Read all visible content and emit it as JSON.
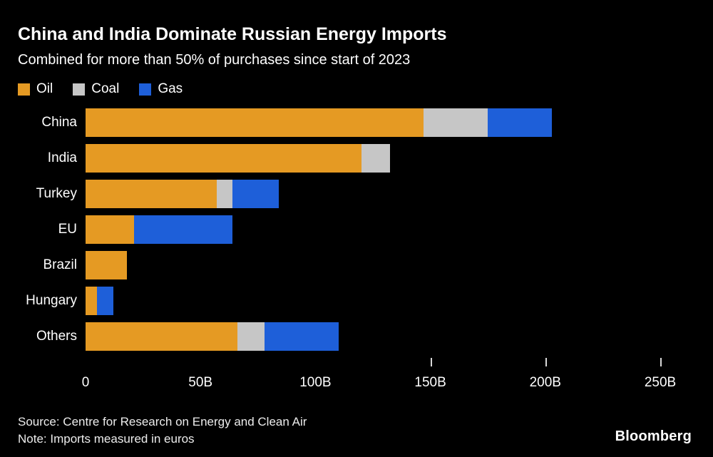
{
  "header": {
    "title": "China and India Dominate Russian Energy Imports",
    "subtitle": "Combined for more than 50% of purchases since start of 2023"
  },
  "chart_data": {
    "type": "bar",
    "orientation": "horizontal",
    "stacked": true,
    "title": "China and India Dominate Russian Energy Imports",
    "categories": [
      "China",
      "India",
      "Turkey",
      "EU",
      "Brazil",
      "Hungary",
      "Others"
    ],
    "series": [
      {
        "name": "Oil",
        "color": "#E59A23",
        "values": [
          147,
          120,
          57,
          21,
          18,
          5,
          66
        ]
      },
      {
        "name": "Coal",
        "color": "#C6C6C6",
        "values": [
          28,
          12.5,
          7,
          0,
          0,
          0,
          12
        ]
      },
      {
        "name": "Gas",
        "color": "#1E5FD9",
        "values": [
          28,
          0,
          20,
          43,
          0,
          7,
          32
        ]
      }
    ],
    "xlabel": "",
    "ylabel": "",
    "axis": {
      "max": 250,
      "ticks": [
        {
          "value": 0,
          "label": "0",
          "mark": false
        },
        {
          "value": 50,
          "label": "50B",
          "mark": false
        },
        {
          "value": 100,
          "label": "100B",
          "mark": false
        },
        {
          "value": 150,
          "label": "150B",
          "mark": true
        },
        {
          "value": 200,
          "label": "200B",
          "mark": true
        },
        {
          "value": 250,
          "label": "250B",
          "mark": true
        }
      ]
    },
    "legend_position": "top",
    "grid": false,
    "background": "#000000"
  },
  "footer": {
    "source": "Source: Centre for Research on Energy and Clean Air",
    "note": "Note: Imports measured in euros",
    "brand": "Bloomberg"
  }
}
